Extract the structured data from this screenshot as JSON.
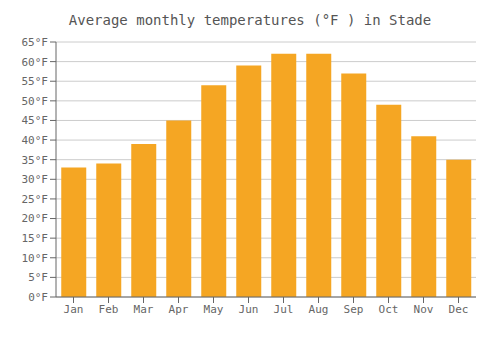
{
  "chart_data": {
    "type": "bar",
    "title": "Average monthly temperatures (°F ) in Stade",
    "categories": [
      "Jan",
      "Feb",
      "Mar",
      "Apr",
      "May",
      "Jun",
      "Jul",
      "Aug",
      "Sep",
      "Oct",
      "Nov",
      "Dec"
    ],
    "values": [
      33,
      34,
      39,
      45,
      54,
      59,
      62,
      62,
      57,
      49,
      41,
      35
    ],
    "color": "#F5A623",
    "ylim": [
      0,
      65
    ],
    "yticks": [
      {
        "value": 0,
        "label": "0°F"
      },
      {
        "value": 5,
        "label": "5°F"
      },
      {
        "value": 10,
        "label": "10°F"
      },
      {
        "value": 15,
        "label": "15°F"
      },
      {
        "value": 20,
        "label": "20°F"
      },
      {
        "value": 25,
        "label": "25°F"
      },
      {
        "value": 30,
        "label": "30°F"
      },
      {
        "value": 35,
        "label": "35°F"
      },
      {
        "value": 40,
        "label": "40°F"
      },
      {
        "value": 45,
        "label": "45°F"
      },
      {
        "value": 50,
        "label": "50°F"
      },
      {
        "value": 55,
        "label": "55°F"
      },
      {
        "value": 60,
        "label": "60°F"
      },
      {
        "value": 65,
        "label": "65°F"
      }
    ],
    "grid": true
  }
}
